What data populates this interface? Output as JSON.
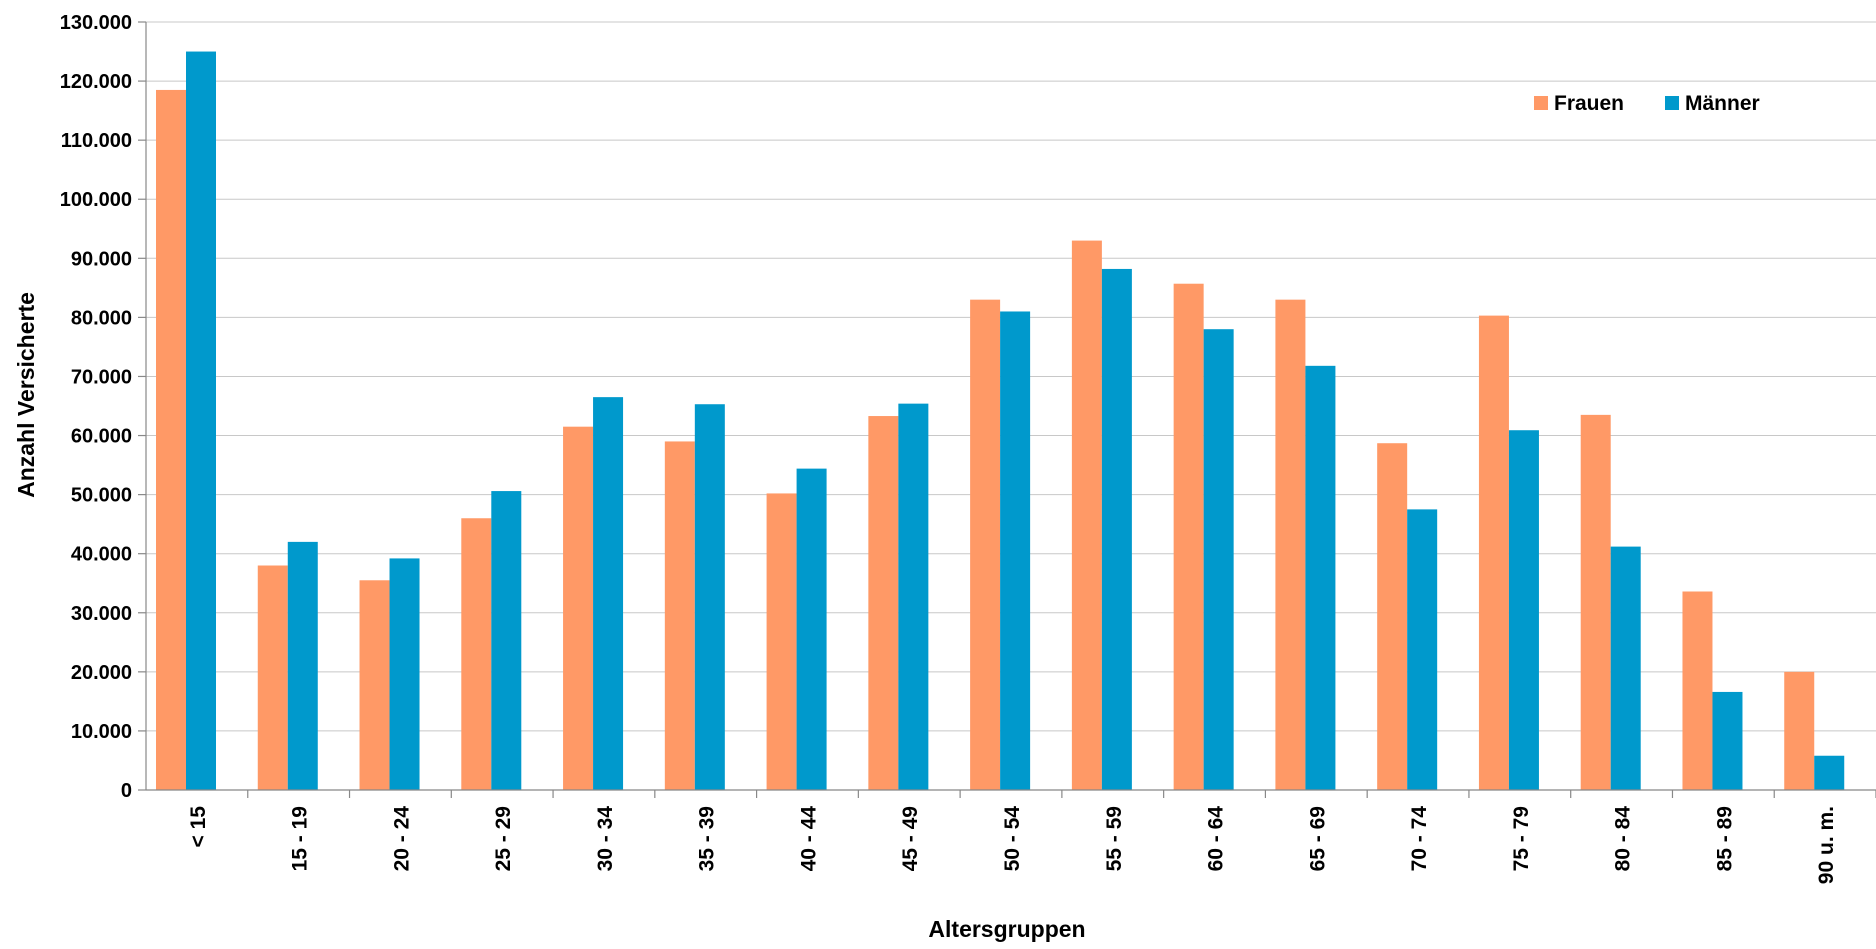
{
  "chart_data": {
    "type": "bar",
    "title": "",
    "xlabel": "Altersgruppen",
    "ylabel": "Anzahl Versicherte",
    "ylim": [
      0,
      130000
    ],
    "ytick_step": 10000,
    "yticks": [
      "0",
      "10.000",
      "20.000",
      "30.000",
      "40.000",
      "50.000",
      "60.000",
      "70.000",
      "80.000",
      "90.000",
      "100.000",
      "110.000",
      "120.000",
      "130.000"
    ],
    "categories": [
      "< 15",
      "15 - 19",
      "20 - 24",
      "25 - 29",
      "30 - 34",
      "35 - 39",
      "40 - 44",
      "45 - 49",
      "50 - 54",
      "55 - 59",
      "60 - 64",
      "65 - 69",
      "70 - 74",
      "75 - 79",
      "80 - 84",
      "85 - 89",
      "90 u. m."
    ],
    "series": [
      {
        "name": "Frauen",
        "color": "#FF9966",
        "values": [
          118500,
          38000,
          35500,
          46000,
          61500,
          59000,
          50200,
          63300,
          83000,
          93000,
          85700,
          83000,
          58700,
          80300,
          63500,
          33600,
          20000
        ]
      },
      {
        "name": "Männer",
        "color": "#0099CC",
        "values": [
          125000,
          42000,
          39200,
          50600,
          66500,
          65300,
          54400,
          65400,
          81000,
          88200,
          78000,
          71800,
          47500,
          60900,
          41200,
          16600,
          5800
        ]
      }
    ],
    "grid": true,
    "legend_position": "top-right"
  }
}
